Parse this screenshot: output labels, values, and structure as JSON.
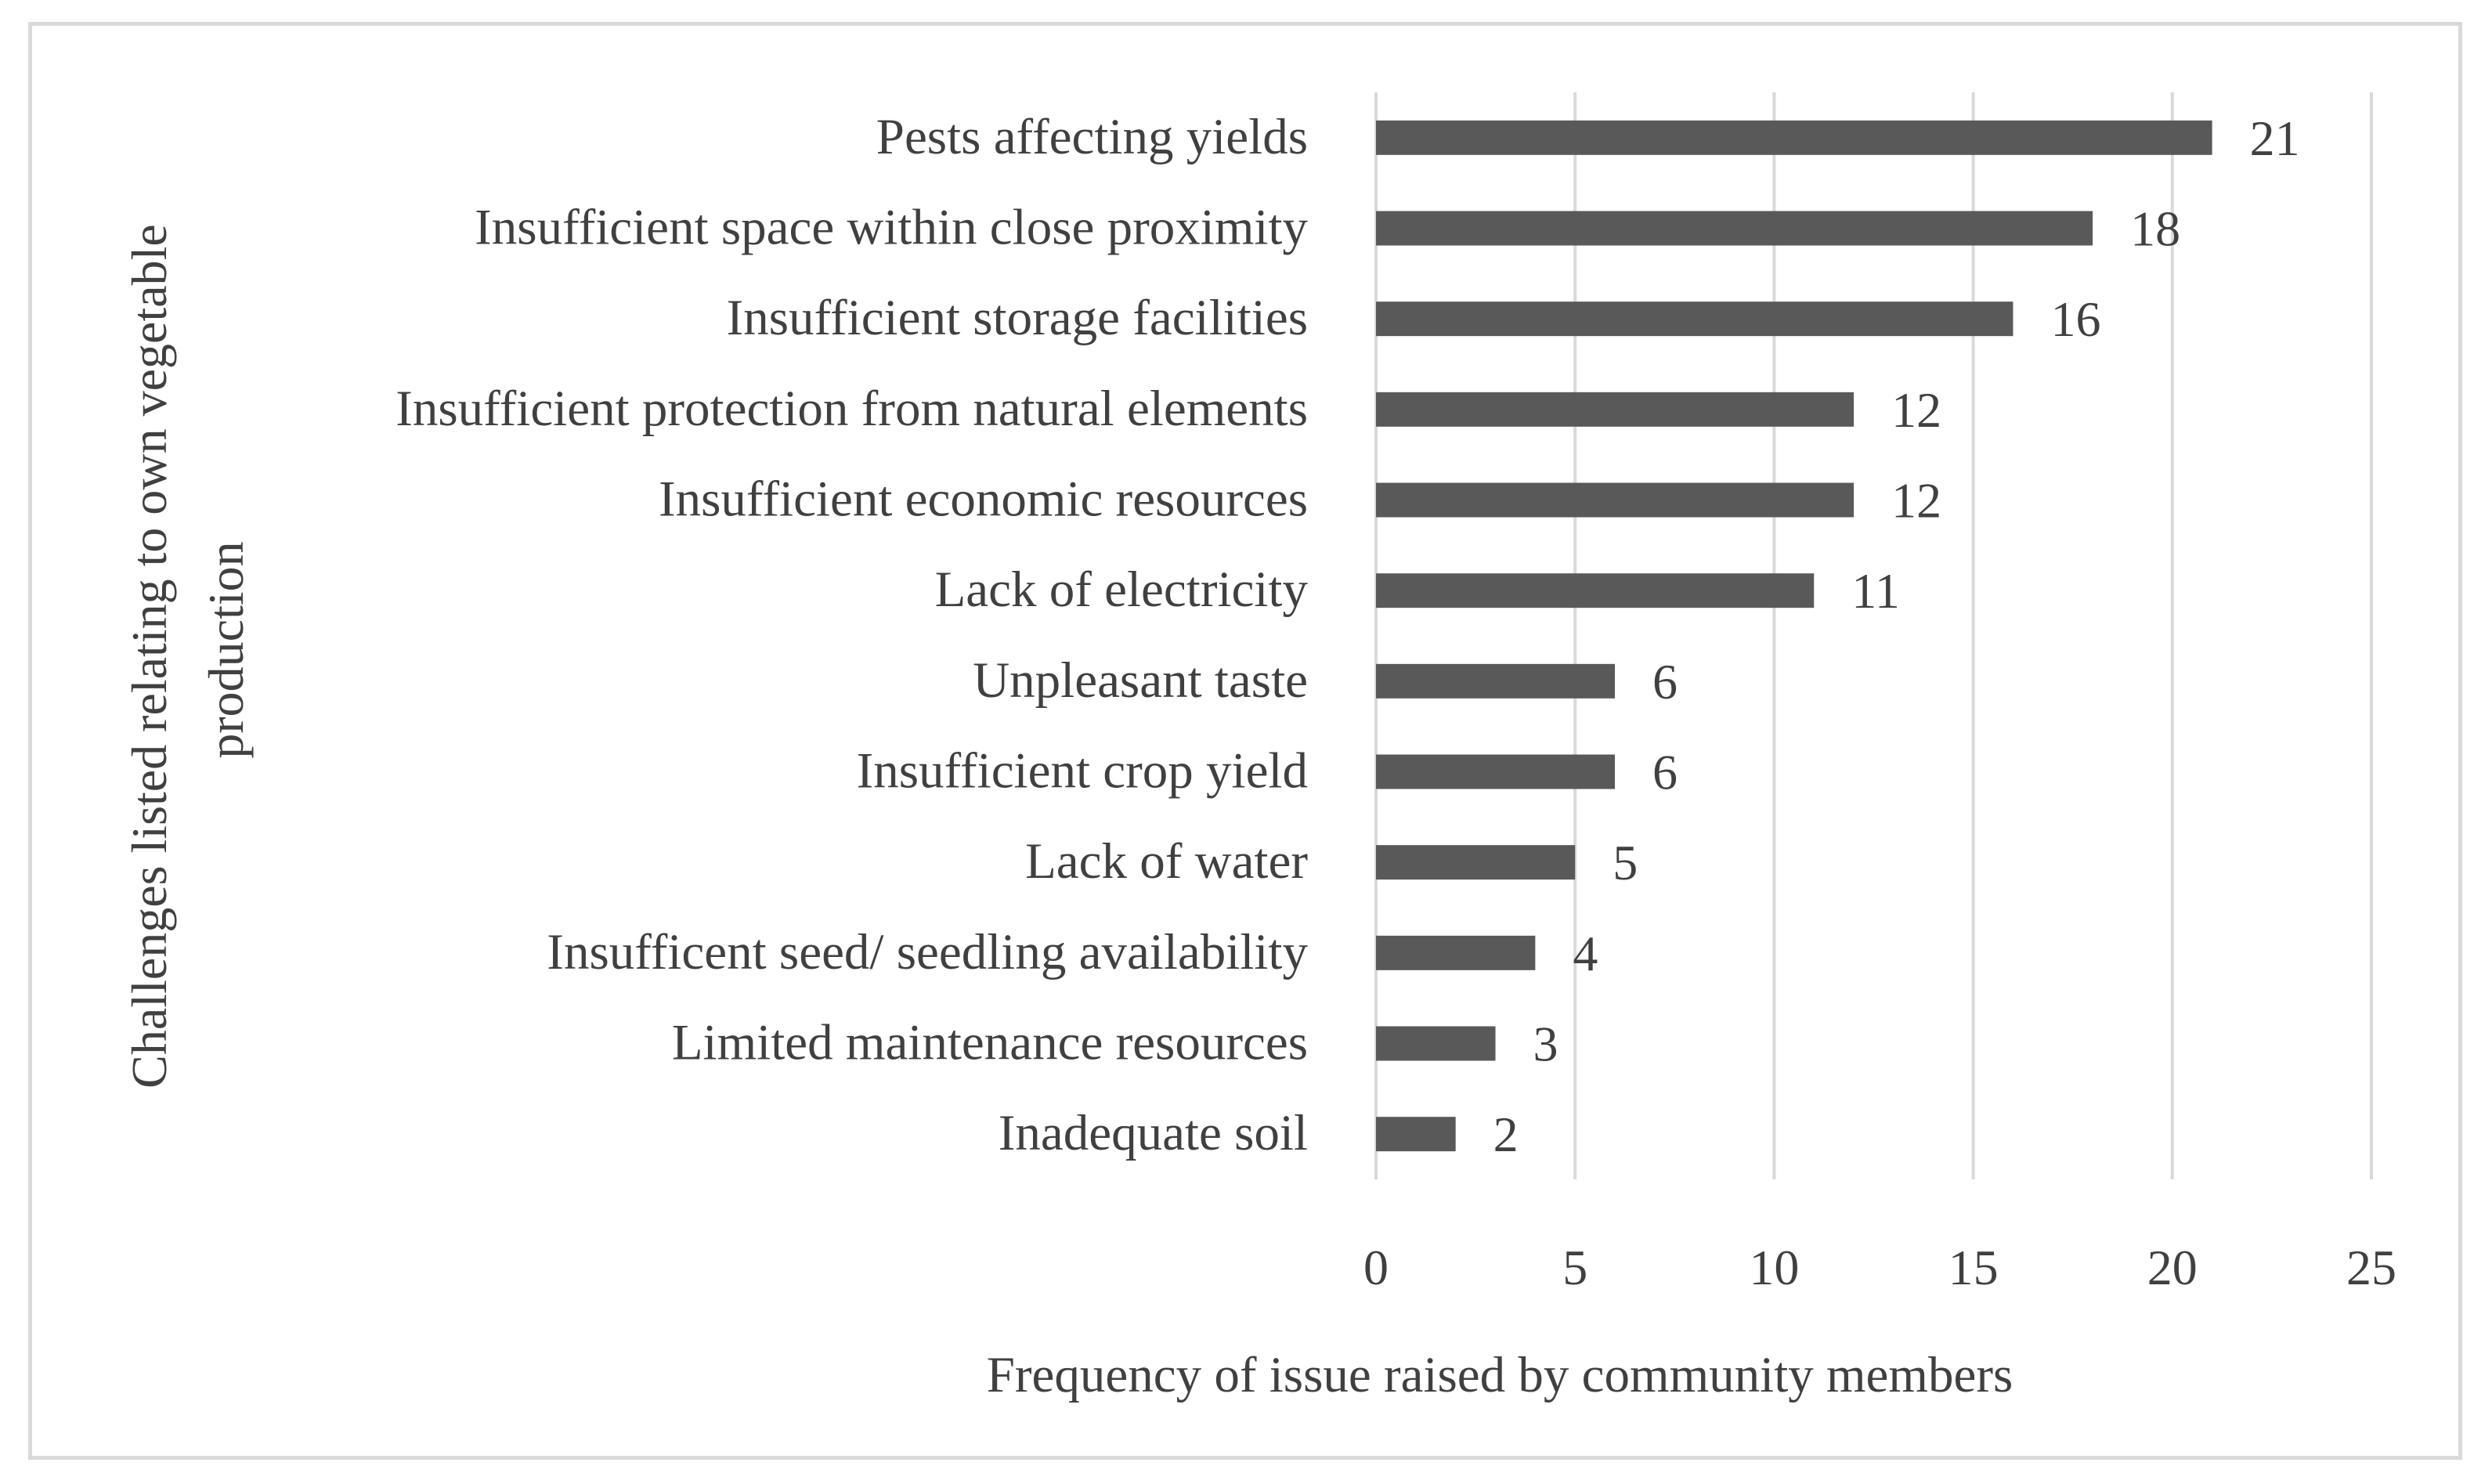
{
  "chart_data": {
    "type": "bar",
    "orientation": "horizontal",
    "title": "",
    "xlabel": "Frequency of issue raised by community members",
    "ylabel_lines": [
      "Challenges listed relating to own vegetable",
      "production"
    ],
    "categories": [
      "Pests affecting yields",
      "Insufficient space within close proximity",
      "Insufficient storage facilities",
      "Insufficient protection from natural elements",
      "Insufficient economic resources",
      "Lack of electricity",
      "Unpleasant taste",
      "Insufficient crop yield",
      "Lack of water",
      "Insufficent seed/ seedling availability",
      "Limited maintenance resources",
      "Inadequate soil"
    ],
    "values": [
      21,
      18,
      16,
      12,
      12,
      11,
      6,
      6,
      5,
      4,
      3,
      2
    ],
    "xlim": [
      0,
      25
    ],
    "xticks": [
      0,
      5,
      10,
      15,
      20,
      25
    ],
    "grid": true,
    "data_labels": true,
    "legend": "none",
    "colors": {
      "bar": "#595959",
      "grid": "#d9d9d9",
      "text": "#404040",
      "frame": "#d9d9d9"
    }
  }
}
